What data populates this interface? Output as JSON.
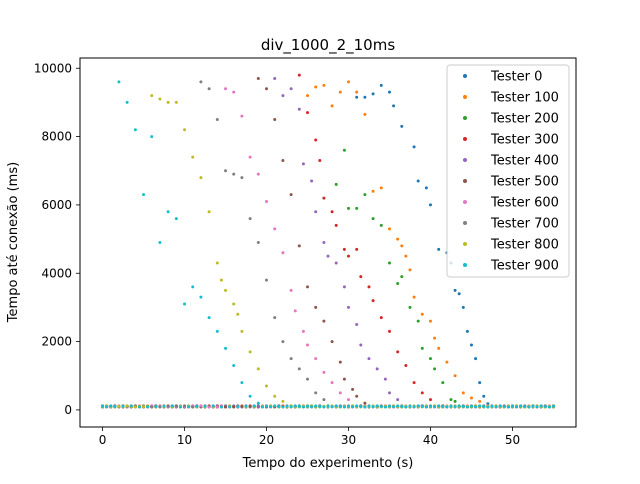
{
  "chart_data": {
    "type": "scatter",
    "title": "div_1000_2_10ms",
    "xlabel": "Tempo do experimento (s)",
    "ylabel": "Tempo até conexão (ms)",
    "xlim": [
      -2.75,
      57.75
    ],
    "ylim": [
      -500,
      10300
    ],
    "xticks": [
      0,
      10,
      20,
      30,
      40,
      50
    ],
    "yticks": [
      0,
      2000,
      4000,
      6000,
      8000,
      10000
    ],
    "grid": false,
    "legend_position": "top-right",
    "series": [
      {
        "name": "Tester 0",
        "color": "#1f77b4",
        "start": 0,
        "end": 47,
        "points": [
          [
            31,
            9150
          ],
          [
            32,
            9150
          ],
          [
            33,
            9250
          ],
          [
            34,
            9500
          ],
          [
            35,
            9300
          ],
          [
            35.5,
            8900
          ],
          [
            36.5,
            8300
          ],
          [
            38,
            7700
          ],
          [
            38.5,
            6700
          ],
          [
            39.5,
            6500
          ],
          [
            40,
            6000
          ],
          [
            41,
            4700
          ],
          [
            42,
            4600
          ],
          [
            42.5,
            4300
          ],
          [
            43,
            3500
          ],
          [
            43.5,
            3400
          ],
          [
            44,
            3000
          ],
          [
            44.5,
            2300
          ],
          [
            45,
            1900
          ],
          [
            45.5,
            1500
          ],
          [
            46,
            800
          ],
          [
            46.5,
            400
          ],
          [
            47,
            180
          ]
        ]
      },
      {
        "name": "Tester 100",
        "color": "#ff7f0e",
        "start": 0,
        "end": 55,
        "points": [
          [
            25,
            9200
          ],
          [
            26,
            9450
          ],
          [
            27,
            9500
          ],
          [
            28,
            8900
          ],
          [
            29,
            9300
          ],
          [
            30,
            9600
          ],
          [
            31,
            9300
          ],
          [
            32,
            8650
          ],
          [
            33,
            6400
          ],
          [
            34,
            6500
          ],
          [
            35,
            5300
          ],
          [
            36,
            5000
          ],
          [
            36.5,
            4800
          ],
          [
            37,
            4500
          ],
          [
            37.5,
            4100
          ],
          [
            38,
            3300
          ],
          [
            39,
            2800
          ],
          [
            40,
            2600
          ],
          [
            40.5,
            2100
          ],
          [
            41,
            1800
          ],
          [
            42,
            1400
          ],
          [
            43,
            1000
          ],
          [
            44,
            500
          ],
          [
            45,
            350
          ],
          [
            46,
            250
          ]
        ]
      },
      {
        "name": "Tester 200",
        "color": "#2ca02c",
        "start": 0,
        "end": 55,
        "points": [
          [
            28.5,
            6600
          ],
          [
            29.5,
            7600
          ],
          [
            30,
            5900
          ],
          [
            31,
            5900
          ],
          [
            32,
            6300
          ],
          [
            33,
            5600
          ],
          [
            34,
            5400
          ],
          [
            35,
            4300
          ],
          [
            36,
            3700
          ],
          [
            36.5,
            3900
          ],
          [
            37.5,
            3000
          ],
          [
            38.5,
            2600
          ],
          [
            39,
            1800
          ],
          [
            40,
            1500
          ],
          [
            40.5,
            1200
          ],
          [
            41.5,
            800
          ],
          [
            42.5,
            300
          ],
          [
            43,
            250
          ]
        ]
      },
      {
        "name": "Tester 300",
        "color": "#d62728",
        "start": 0,
        "end": 55,
        "points": [
          [
            24,
            9800
          ],
          [
            25,
            8700
          ],
          [
            26,
            7900
          ],
          [
            26.5,
            7300
          ],
          [
            27,
            6200
          ],
          [
            28,
            5800
          ],
          [
            28.5,
            5400
          ],
          [
            29.5,
            4700
          ],
          [
            30,
            4500
          ],
          [
            31,
            4700
          ],
          [
            31.5,
            3900
          ],
          [
            32.5,
            3600
          ],
          [
            33,
            3200
          ],
          [
            34,
            2700
          ],
          [
            35,
            2300
          ],
          [
            36,
            1700
          ],
          [
            37,
            1300
          ],
          [
            38,
            800
          ],
          [
            39,
            500
          ],
          [
            40,
            300
          ]
        ]
      },
      {
        "name": "Tester 400",
        "color": "#9467bd",
        "start": 0,
        "end": 55,
        "points": [
          [
            21,
            9700
          ],
          [
            22,
            9200
          ],
          [
            23,
            9400
          ],
          [
            24,
            8800
          ],
          [
            24.5,
            7200
          ],
          [
            25.5,
            6700
          ],
          [
            26,
            5800
          ],
          [
            27,
            4900
          ],
          [
            27.5,
            4500
          ],
          [
            28.5,
            4300
          ],
          [
            29.5,
            3600
          ],
          [
            30,
            3000
          ],
          [
            31,
            2500
          ],
          [
            31.5,
            1900
          ],
          [
            32.5,
            1500
          ],
          [
            33.5,
            1200
          ],
          [
            34.5,
            900
          ],
          [
            35,
            500
          ],
          [
            36,
            300
          ]
        ]
      },
      {
        "name": "Tester 500",
        "color": "#8c564b",
        "start": 0,
        "end": 55,
        "points": [
          [
            19,
            9700
          ],
          [
            20,
            9400
          ],
          [
            21,
            8500
          ],
          [
            22,
            7300
          ],
          [
            23,
            6300
          ],
          [
            24,
            4800
          ],
          [
            25,
            3600
          ],
          [
            26,
            3000
          ],
          [
            27,
            2600
          ],
          [
            28,
            2000
          ],
          [
            29,
            1400
          ],
          [
            29.5,
            900
          ],
          [
            30.5,
            600
          ],
          [
            31,
            400
          ],
          [
            32,
            200
          ]
        ]
      },
      {
        "name": "Tester 600",
        "color": "#e377c2",
        "start": 0,
        "end": 55,
        "points": [
          [
            15,
            9400
          ],
          [
            16,
            9300
          ],
          [
            17,
            8600
          ],
          [
            18,
            7400
          ],
          [
            19,
            6900
          ],
          [
            20,
            6100
          ],
          [
            21,
            5300
          ],
          [
            22,
            4600
          ],
          [
            23,
            3500
          ],
          [
            23.5,
            2900
          ],
          [
            24.5,
            2300
          ],
          [
            25,
            1900
          ],
          [
            26,
            1500
          ],
          [
            27,
            1100
          ],
          [
            28,
            800
          ],
          [
            29,
            500
          ],
          [
            30,
            300
          ]
        ]
      },
      {
        "name": "Tester 700",
        "color": "#7f7f7f",
        "start": 0,
        "end": 55,
        "points": [
          [
            12,
            9600
          ],
          [
            13,
            9400
          ],
          [
            14,
            8500
          ],
          [
            15,
            7000
          ],
          [
            16,
            6900
          ],
          [
            17,
            6800
          ],
          [
            18,
            5600
          ],
          [
            19,
            4900
          ],
          [
            20,
            3800
          ],
          [
            21,
            2700
          ],
          [
            22,
            2000
          ],
          [
            23,
            1500
          ],
          [
            24,
            1200
          ],
          [
            25,
            900
          ],
          [
            26,
            500
          ],
          [
            27,
            300
          ]
        ]
      },
      {
        "name": "Tester 800",
        "color": "#bcbd22",
        "start": 0,
        "end": 55,
        "points": [
          [
            6,
            9200
          ],
          [
            7,
            9100
          ],
          [
            8,
            9000
          ],
          [
            9,
            9000
          ],
          [
            10,
            8200
          ],
          [
            11,
            7400
          ],
          [
            12,
            6800
          ],
          [
            13,
            5800
          ],
          [
            14,
            4300
          ],
          [
            14.5,
            3800
          ],
          [
            15,
            3500
          ],
          [
            16,
            3100
          ],
          [
            16.5,
            2800
          ],
          [
            17,
            2300
          ],
          [
            18,
            1700
          ],
          [
            19,
            1200
          ],
          [
            20,
            700
          ],
          [
            21,
            400
          ],
          [
            22,
            250
          ]
        ]
      },
      {
        "name": "Tester 900",
        "color": "#17becf",
        "start": 0,
        "end": 55,
        "points": [
          [
            2,
            9600
          ],
          [
            3,
            9000
          ],
          [
            4,
            8200
          ],
          [
            5,
            6300
          ],
          [
            6,
            8000
          ],
          [
            7,
            4900
          ],
          [
            8,
            5800
          ],
          [
            9,
            5600
          ],
          [
            10,
            3100
          ],
          [
            11,
            3600
          ],
          [
            12,
            3300
          ],
          [
            13,
            2700
          ],
          [
            14,
            2300
          ],
          [
            15,
            1800
          ],
          [
            16,
            1300
          ],
          [
            17,
            800
          ],
          [
            18,
            400
          ],
          [
            19,
            200
          ]
        ]
      }
    ]
  }
}
